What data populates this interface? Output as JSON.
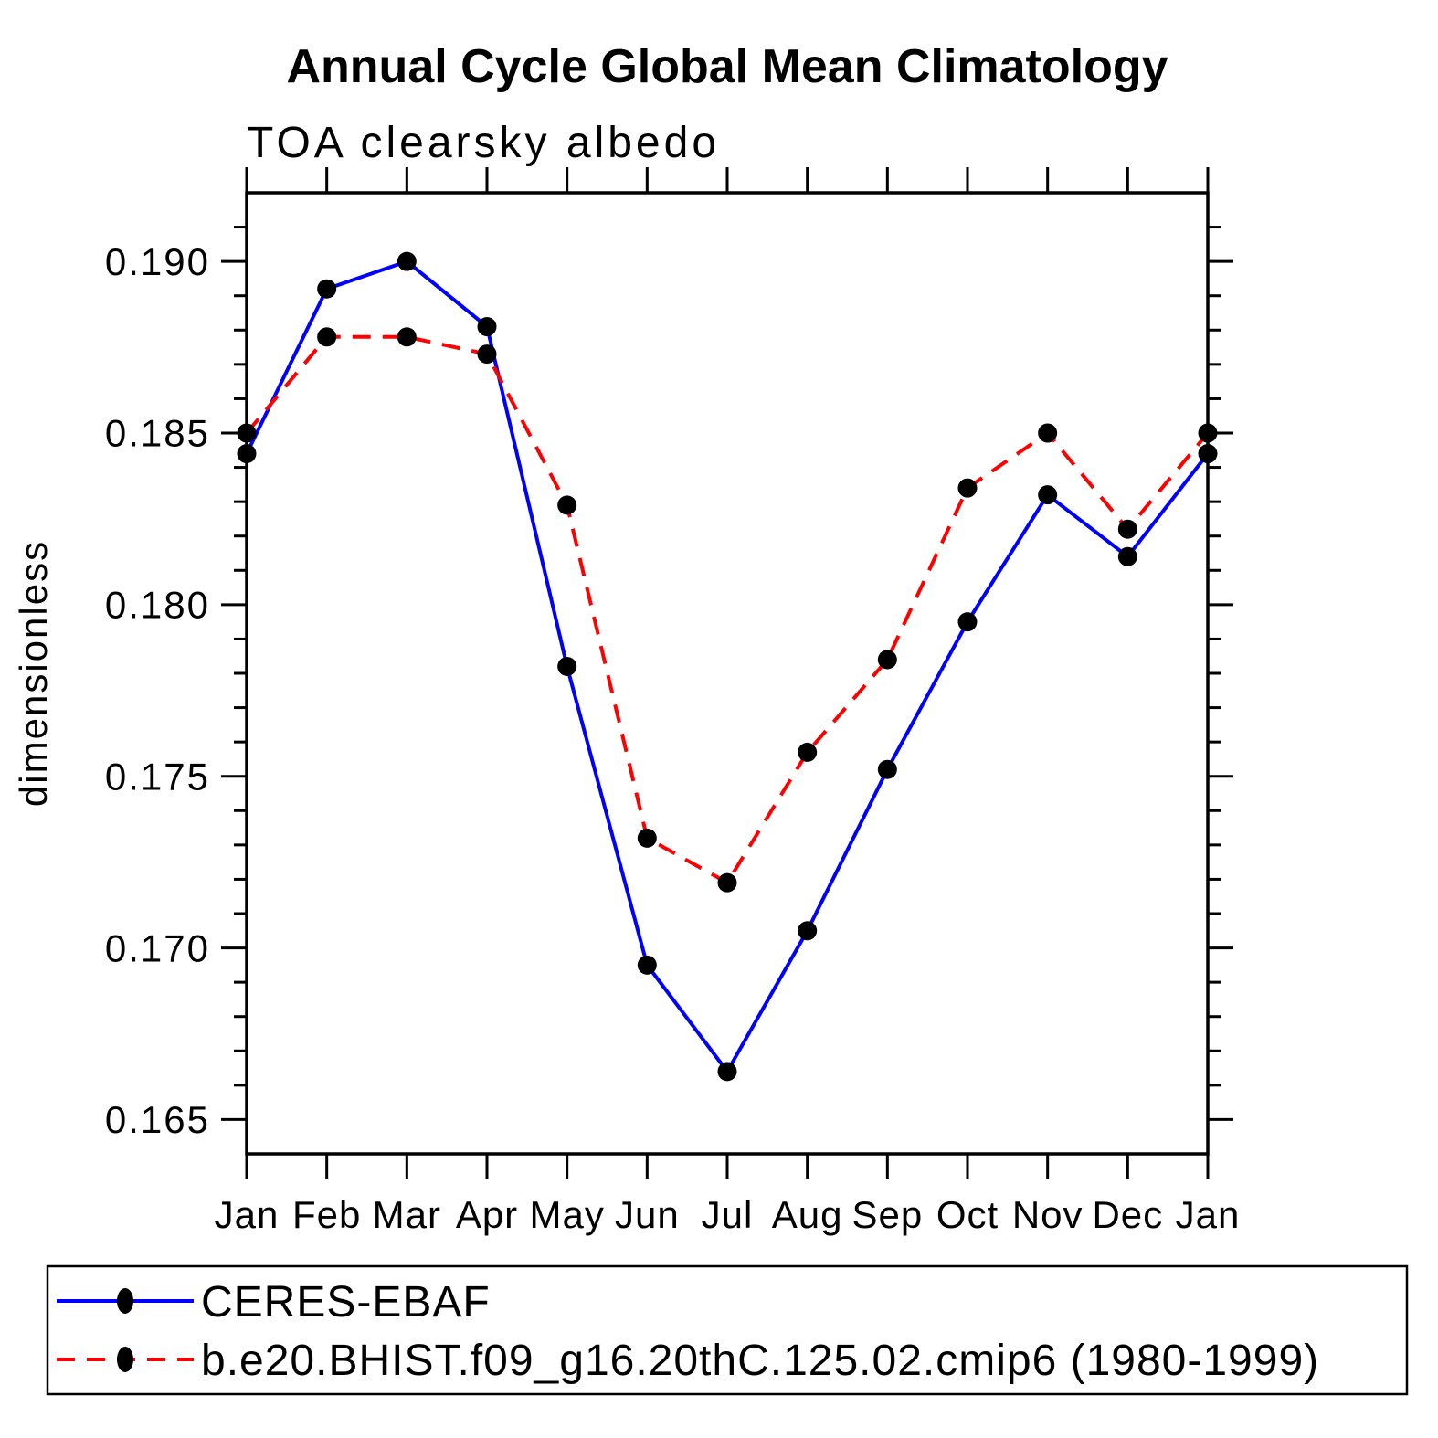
{
  "page": {
    "background_color": "#ffffff",
    "axis_color": "#000000",
    "marker_color": "#000000"
  },
  "chart_data": {
    "type": "line",
    "title": "Annual Cycle Global Mean Climatology",
    "subtitle": "TOA clearsky albedo",
    "ylabel": "dimensionless",
    "xlabel": "",
    "x_categories": [
      "Jan",
      "Feb",
      "Mar",
      "Apr",
      "May",
      "Jun",
      "Jul",
      "Aug",
      "Sep",
      "Oct",
      "Nov",
      "Dec",
      "Jan"
    ],
    "ylim": [
      0.164,
      0.192
    ],
    "ytick_major": [
      {
        "value": 0.19,
        "label": "0.190"
      },
      {
        "value": 0.185,
        "label": "0.185"
      },
      {
        "value": 0.18,
        "label": "0.180"
      },
      {
        "value": 0.175,
        "label": "0.175"
      },
      {
        "value": 0.17,
        "label": "0.170"
      },
      {
        "value": 0.165,
        "label": "0.165"
      }
    ],
    "ytick_minor_step": 0.001,
    "grid": false,
    "legend_position": "bottom-left-box",
    "series": [
      {
        "name": "CERES-EBAF",
        "color": "#0000ff",
        "line_style": "solid",
        "marker": "filled-circle",
        "marker_color": "#000000",
        "values": [
          0.1844,
          0.1892,
          0.19,
          0.1881,
          0.1782,
          0.1695,
          0.1664,
          0.1705,
          0.1752,
          0.1795,
          0.1832,
          0.1814,
          0.1844
        ]
      },
      {
        "name": "b.e20.BHIST.f09_g16.20thC.125.02.cmip6 (1980-1999)",
        "color": "#ff0000",
        "line_style": "dashed",
        "marker": "filled-circle",
        "marker_color": "#000000",
        "values": [
          0.185,
          0.1878,
          0.1878,
          0.1873,
          0.1829,
          0.1732,
          0.1719,
          0.1757,
          0.1784,
          0.1834,
          0.185,
          0.1822,
          0.185
        ]
      }
    ]
  }
}
